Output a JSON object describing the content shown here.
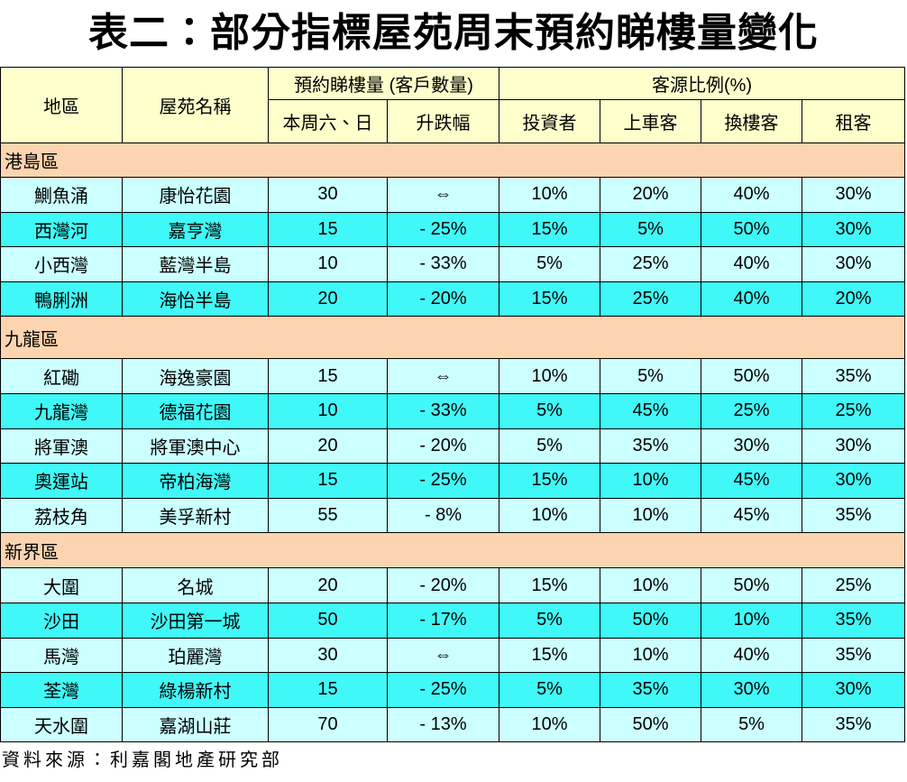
{
  "title": "表二：部分指標屋苑周末預約睇樓量變化",
  "table": {
    "header": {
      "district": "地區",
      "estate": "屋苑名稱",
      "bookings": "預約睇樓量 (客戶數量)",
      "source_ratio": "客源比例(%)",
      "sub": [
        "本周六、日",
        "升跌幅",
        "投資者",
        "上車客",
        "換樓客",
        "租客"
      ]
    },
    "sections": [
      {
        "name": "港島區",
        "rows": [
          [
            "鰂魚涌",
            "康怡花園",
            "30",
            "⇔",
            "10%",
            "20%",
            "40%",
            "30%"
          ],
          [
            "西灣河",
            "嘉亨灣",
            "15",
            "- 25%",
            "15%",
            "5%",
            "50%",
            "30%"
          ],
          [
            "小西灣",
            "藍灣半島",
            "10",
            "- 33%",
            "5%",
            "25%",
            "40%",
            "30%"
          ],
          [
            "鴨脷洲",
            "海怡半島",
            "20",
            "- 20%",
            "15%",
            "25%",
            "40%",
            "20%"
          ]
        ]
      },
      {
        "name": "九龍區",
        "rows": [
          [
            "紅磡",
            "海逸豪園",
            "15",
            "⇔",
            "10%",
            "5%",
            "50%",
            "35%"
          ],
          [
            "九龍灣",
            "德福花園",
            "10",
            "- 33%",
            "5%",
            "45%",
            "25%",
            "25%"
          ],
          [
            "將軍澳",
            "將軍澳中心",
            "20",
            "- 20%",
            "5%",
            "35%",
            "30%",
            "30%"
          ],
          [
            "奧運站",
            "帝柏海灣",
            "15",
            "- 25%",
            "15%",
            "10%",
            "45%",
            "30%"
          ],
          [
            "荔枝角",
            "美孚新村",
            "55",
            "- 8%",
            "10%",
            "10%",
            "45%",
            "35%"
          ]
        ]
      },
      {
        "name": "新界區",
        "rows": [
          [
            "大圍",
            "名城",
            "20",
            "- 20%",
            "15%",
            "10%",
            "50%",
            "25%"
          ],
          [
            "沙田",
            "沙田第一城",
            "50",
            "- 17%",
            "5%",
            "50%",
            "10%",
            "35%"
          ],
          [
            "馬灣",
            "珀麗灣",
            "30",
            "⇔",
            "15%",
            "10%",
            "40%",
            "35%"
          ],
          [
            "荃灣",
            "綠楊新村",
            "15",
            "- 25%",
            "5%",
            "35%",
            "30%",
            "30%"
          ],
          [
            "天水圍",
            "嘉湖山莊",
            "70",
            "- 13%",
            "10%",
            "50%",
            "5%",
            "35%"
          ]
        ]
      }
    ]
  },
  "footer": "資料來源：利嘉閣地產研究部"
}
